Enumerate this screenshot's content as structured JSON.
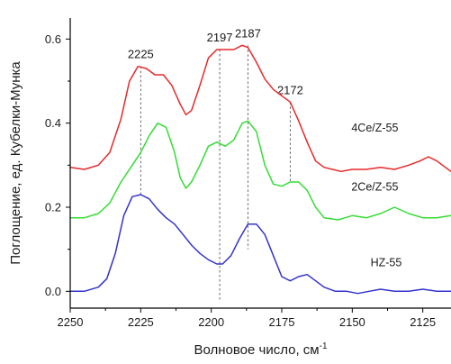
{
  "chart_data": {
    "type": "line",
    "xlabel": "Волновое число, см",
    "xlabel_sup": "-1",
    "ylabel": "Поглощение, ед. Кубелки-Мунка",
    "xlim": [
      2250,
      2115
    ],
    "ylim": [
      -0.04,
      0.65
    ],
    "x_ticks": [
      2250,
      2225,
      2200,
      2175,
      2150,
      2125
    ],
    "y_ticks": [
      0.0,
      0.2,
      0.4,
      0.6
    ],
    "x_tick_labels": [
      "2250",
      "2225",
      "2200",
      "2175",
      "2150",
      "2125"
    ],
    "y_tick_labels": [
      "0.0",
      "0.2",
      "0.4",
      "0.6"
    ],
    "grid": false,
    "legend": "none",
    "series": [
      {
        "name": "4Ce/Z-55",
        "color": "#e8282a",
        "x": [
          2250,
          2245,
          2240,
          2236,
          2232,
          2229,
          2226,
          2223,
          2220,
          2217,
          2214,
          2211,
          2209,
          2207,
          2204,
          2201,
          2198,
          2195,
          2192,
          2189,
          2187,
          2184,
          2181,
          2178,
          2175,
          2172,
          2169,
          2166,
          2163,
          2160,
          2157,
          2154,
          2150,
          2145,
          2140,
          2135,
          2130,
          2126,
          2123,
          2120,
          2117,
          2115
        ],
        "y": [
          0.295,
          0.29,
          0.3,
          0.33,
          0.41,
          0.5,
          0.535,
          0.53,
          0.515,
          0.515,
          0.49,
          0.445,
          0.42,
          0.43,
          0.49,
          0.555,
          0.575,
          0.575,
          0.575,
          0.585,
          0.58,
          0.545,
          0.505,
          0.48,
          0.465,
          0.45,
          0.405,
          0.355,
          0.31,
          0.295,
          0.29,
          0.285,
          0.29,
          0.29,
          0.295,
          0.29,
          0.3,
          0.31,
          0.32,
          0.31,
          0.295,
          0.285
        ]
      },
      {
        "name": "2Ce/Z-55",
        "color": "#33dd33",
        "x": [
          2250,
          2245,
          2240,
          2236,
          2232,
          2228,
          2225,
          2222,
          2219,
          2216,
          2213,
          2211,
          2209,
          2207,
          2204,
          2201,
          2198,
          2195,
          2192,
          2189,
          2187,
          2184,
          2181,
          2178,
          2175,
          2172,
          2169,
          2166,
          2163,
          2160,
          2155,
          2150,
          2145,
          2140,
          2135,
          2130,
          2125,
          2120,
          2115
        ],
        "y": [
          0.175,
          0.175,
          0.185,
          0.21,
          0.26,
          0.3,
          0.33,
          0.37,
          0.4,
          0.39,
          0.33,
          0.27,
          0.245,
          0.26,
          0.3,
          0.345,
          0.355,
          0.345,
          0.36,
          0.4,
          0.405,
          0.38,
          0.3,
          0.255,
          0.25,
          0.26,
          0.26,
          0.24,
          0.2,
          0.175,
          0.17,
          0.18,
          0.175,
          0.185,
          0.2,
          0.185,
          0.175,
          0.175,
          0.18
        ]
      },
      {
        "name": "HZ-55",
        "color": "#3333cc",
        "x": [
          2250,
          2245,
          2240,
          2237,
          2234,
          2231,
          2228,
          2225,
          2222,
          2219,
          2216,
          2213,
          2210,
          2207,
          2204,
          2201,
          2198,
          2196,
          2193,
          2190,
          2187,
          2184,
          2181,
          2178,
          2175,
          2172,
          2169,
          2166,
          2163,
          2160,
          2156,
          2152,
          2148,
          2144,
          2140,
          2135,
          2130,
          2125,
          2120,
          2115
        ],
        "y": [
          0.0,
          0.0,
          0.01,
          0.03,
          0.09,
          0.18,
          0.225,
          0.23,
          0.22,
          0.195,
          0.175,
          0.16,
          0.135,
          0.11,
          0.09,
          0.075,
          0.065,
          0.065,
          0.085,
          0.125,
          0.16,
          0.16,
          0.135,
          0.085,
          0.035,
          0.025,
          0.035,
          0.04,
          0.025,
          0.01,
          0.0,
          0.0,
          -0.005,
          0.0,
          0.005,
          0.0,
          0.0,
          0.005,
          0.0,
          0.0
        ]
      }
    ],
    "peak_markers": [
      {
        "label": "2225",
        "x": 2225,
        "y_top": 0.535,
        "y_bottom": 0.23
      },
      {
        "label": "2197",
        "x": 2197,
        "y_top": 0.575,
        "y_bottom": -0.02
      },
      {
        "label": "2187",
        "x": 2187,
        "y_top": 0.585,
        "y_bottom": 0.1
      },
      {
        "label": "2172",
        "x": 2172,
        "y_top": 0.45,
        "y_bottom": 0.26
      }
    ],
    "annotations": [
      {
        "text": "4Ce/Z-55",
        "x": 2142,
        "y": 0.38
      },
      {
        "text": "2Ce/Z-55",
        "x": 2142,
        "y": 0.24
      },
      {
        "text": "HZ-55",
        "x": 2138,
        "y": 0.06
      }
    ]
  }
}
